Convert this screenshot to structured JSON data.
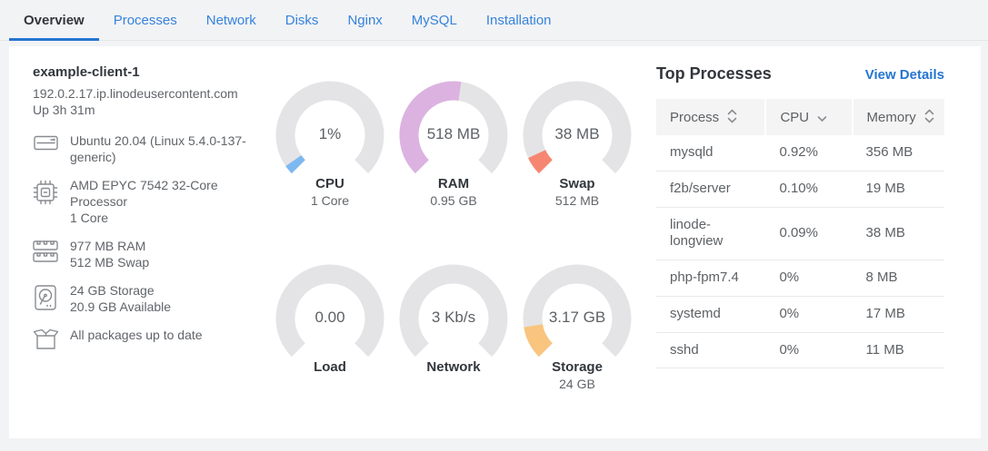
{
  "colors": {
    "accent_blue": "#2575d0",
    "tab_blue": "#3683dc",
    "heading": "#32363c",
    "body_text": "#606469",
    "gauge_track": "#e4e4e6",
    "page_background": "#f2f3f5",
    "table_header_bg": "#f4f4f4"
  },
  "tabs": {
    "items": [
      {
        "label": "Overview",
        "active": true
      },
      {
        "label": "Processes",
        "active": false
      },
      {
        "label": "Network",
        "active": false
      },
      {
        "label": "Disks",
        "active": false
      },
      {
        "label": "Nginx",
        "active": false
      },
      {
        "label": "MySQL",
        "active": false
      },
      {
        "label": "Installation",
        "active": false
      }
    ]
  },
  "host": {
    "name": "example-client-1",
    "hostname": "192.0.2.17.ip.linodeusercontent.com",
    "uptime": "Up 3h 31m",
    "details": [
      {
        "icon": "os-icon",
        "text": "Ubuntu 20.04 (Linux 5.4.0-137-generic)"
      },
      {
        "icon": "cpu-icon",
        "text": "AMD EPYC 7542 32-Core Processor\n1 Core"
      },
      {
        "icon": "ram-icon",
        "text": "977 MB RAM\n512 MB Swap"
      },
      {
        "icon": "disk-icon",
        "text": "24 GB Storage\n20.9 GB Available"
      },
      {
        "icon": "package-icon",
        "text": "All packages up to date"
      }
    ]
  },
  "gauges": [
    {
      "id": "cpu",
      "value": "1%",
      "label": "CPU",
      "sublabel": "1 Core",
      "color": "#7db8f0",
      "fill": 0.037
    },
    {
      "id": "ram",
      "value": "518 MB",
      "label": "RAM",
      "sublabel": "0.95 GB",
      "color": "#dcb2e1",
      "fill": 0.53
    },
    {
      "id": "swap",
      "value": "38 MB",
      "label": "Swap",
      "sublabel": "512 MB",
      "color": "#f68672",
      "fill": 0.074
    },
    {
      "id": "load",
      "value": "0.00",
      "label": "Load",
      "sublabel": "",
      "color": "#e4e4e6",
      "fill": 0
    },
    {
      "id": "network",
      "value": "3 Kb/s",
      "label": "Network",
      "sublabel": "",
      "color": "#e4e4e6",
      "fill": 0
    },
    {
      "id": "storage",
      "value": "3.17 GB",
      "label": "Storage",
      "sublabel": "24 GB",
      "color": "#f9c57e",
      "fill": 0.132
    }
  ],
  "top_processes": {
    "title": "Top Processes",
    "view_details_label": "View Details",
    "columns": [
      {
        "label": "Process",
        "sort": "both"
      },
      {
        "label": "CPU",
        "sort": "desc"
      },
      {
        "label": "Memory",
        "sort": "both"
      }
    ],
    "rows": [
      {
        "process": "mysqld",
        "cpu": "0.92%",
        "memory": "356 MB"
      },
      {
        "process": "f2b/server",
        "cpu": "0.10%",
        "memory": "19 MB"
      },
      {
        "process": "linode-longview",
        "cpu": "0.09%",
        "memory": "38 MB"
      },
      {
        "process": "php-fpm7.4",
        "cpu": "0%",
        "memory": "8 MB"
      },
      {
        "process": "systemd",
        "cpu": "0%",
        "memory": "17 MB"
      },
      {
        "process": "sshd",
        "cpu": "0%",
        "memory": "11 MB"
      }
    ]
  }
}
